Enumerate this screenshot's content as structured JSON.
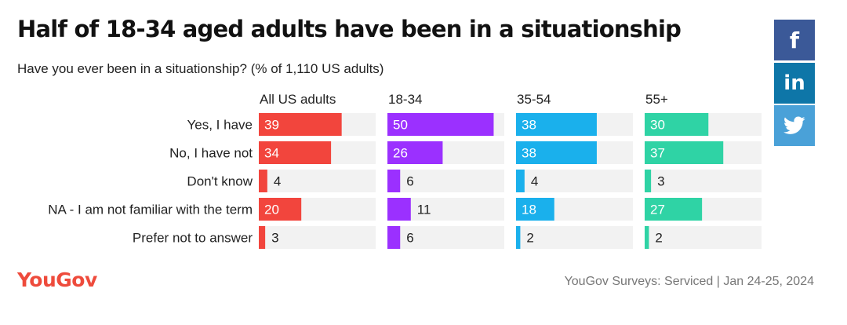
{
  "chart_data": {
    "type": "bar",
    "title": "Half of 18-34 aged adults have been in a situationship",
    "subtitle": "Have you ever been in a situationship? (% of 1,110 US adults)",
    "categories": [
      "Yes, I have",
      "No, I have not",
      "Don't know",
      "NA - I am not familiar with the term",
      "Prefer not to answer"
    ],
    "series": [
      {
        "name": "All US adults",
        "color": "#f2453d",
        "values": [
          39,
          34,
          4,
          20,
          3
        ]
      },
      {
        "name": "18-34",
        "color": "#9b30ff",
        "values": [
          50,
          26,
          6,
          11,
          6
        ]
      },
      {
        "name": "35-54",
        "color": "#1ab0ec",
        "values": [
          38,
          38,
          4,
          18,
          2
        ]
      },
      {
        "name": "55+",
        "color": "#2fd3a5",
        "values": [
          30,
          37,
          3,
          27,
          2
        ]
      }
    ],
    "xlim": [
      0,
      55
    ],
    "track_color": "#f2f2f2"
  },
  "share": {
    "facebook_icon": "facebook-icon",
    "linkedin_icon": "linkedin-icon",
    "twitter_icon": "twitter-icon",
    "facebook_glyph": "f",
    "linkedin_glyph": "in"
  },
  "footer": {
    "brand": "YouGov",
    "source": "YouGov Surveys: Serviced | Jan 24-25, 2024"
  }
}
